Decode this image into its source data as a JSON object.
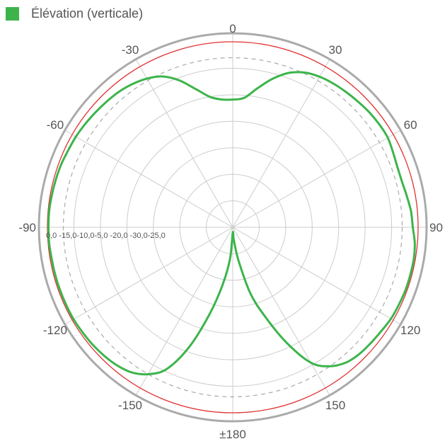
{
  "chart_data": {
    "type": "line",
    "subtype": "polar",
    "title": "",
    "legend": {
      "position": "top-left"
    },
    "series": [
      {
        "name": "Élévation (verticale)",
        "color": "#3cb44b",
        "angle_deg": [
          0,
          5,
          10,
          15,
          20,
          25,
          30,
          35,
          40,
          45,
          50,
          55,
          60,
          65,
          70,
          75,
          80,
          85,
          90,
          95,
          100,
          105,
          110,
          115,
          120,
          125,
          130,
          135,
          140,
          145,
          150,
          155,
          160,
          165,
          170,
          175,
          180,
          185,
          190,
          195,
          200,
          205,
          210,
          215,
          220,
          225,
          230,
          235,
          240,
          245,
          250,
          255,
          260,
          265,
          270,
          275,
          280,
          285,
          290,
          295,
          300,
          305,
          310,
          315,
          320,
          325,
          330,
          335,
          340,
          345,
          350,
          355,
          360
        ],
        "gain_db": [
          -10.9,
          -10.5,
          -8.4,
          -6.0,
          -4.0,
          -2.8,
          -2.2,
          -1.9,
          -1.7,
          -1.5,
          -1.3,
          -1.2,
          -1.2,
          -1.6,
          -1.9,
          -1.9,
          -1.6,
          -1.2,
          -1.0,
          -0.5,
          -0.3,
          -0.3,
          -0.3,
          -0.4,
          -0.5,
          -0.8,
          -1.0,
          -1.2,
          -1.7,
          -3.0,
          -5.5,
          -11.0,
          -17.0,
          -22.0,
          -28.5,
          -32.5,
          -34.0,
          -29.0,
          -24.0,
          -18.0,
          -11.0,
          -5.5,
          -3.0,
          -1.6,
          -1.0,
          -0.7,
          -0.5,
          -0.4,
          -0.3,
          -0.3,
          -0.3,
          -0.3,
          -0.3,
          -0.2,
          -0.2,
          -0.2,
          -0.3,
          -0.4,
          -0.5,
          -0.7,
          -0.8,
          -1.0,
          -1.2,
          -1.4,
          -1.6,
          -2.0,
          -2.6,
          -3.6,
          -5.5,
          -8.0,
          -10.0,
          -10.8,
          -10.9
        ]
      }
    ],
    "angle_ticks": [
      {
        "deg": 0,
        "label": "0"
      },
      {
        "deg": 30,
        "label": "30"
      },
      {
        "deg": 60,
        "label": "60"
      },
      {
        "deg": 90,
        "label": "90"
      },
      {
        "deg": 120,
        "label": "120"
      },
      {
        "deg": 150,
        "label": "150"
      },
      {
        "deg": 180,
        "label": "±180"
      },
      {
        "deg": -150,
        "label": "-150"
      },
      {
        "deg": -120,
        "label": "-120"
      },
      {
        "deg": -90,
        "label": "-90"
      },
      {
        "deg": -60,
        "label": "-60"
      },
      {
        "deg": -30,
        "label": "-30"
      }
    ],
    "radial_ticks": [
      {
        "db": 0,
        "label": "0,0"
      },
      {
        "db": -5,
        "label": "-5,0"
      },
      {
        "db": -10,
        "label": "-10,0"
      },
      {
        "db": -15,
        "label": "-15,0"
      },
      {
        "db": -20,
        "label": "-20,0"
      },
      {
        "db": -25,
        "label": "-25,0"
      },
      {
        "db": -30,
        "label": "-30,0"
      }
    ],
    "radial_label_text": "0,0 -15,0-10,0-5,0 -20,0 -30,0-25,0",
    "r_range_db": [
      -35,
      1
    ],
    "reference_rings": [
      {
        "db": 0,
        "style": "solid",
        "color": "#e03030"
      },
      {
        "db": -3,
        "style": "dashed",
        "color": "#aaaaaa"
      }
    ],
    "grid": true,
    "colors": {
      "grid": "#cccccc",
      "outer_ring": "#aaaaaa",
      "text": "#555555"
    }
  }
}
